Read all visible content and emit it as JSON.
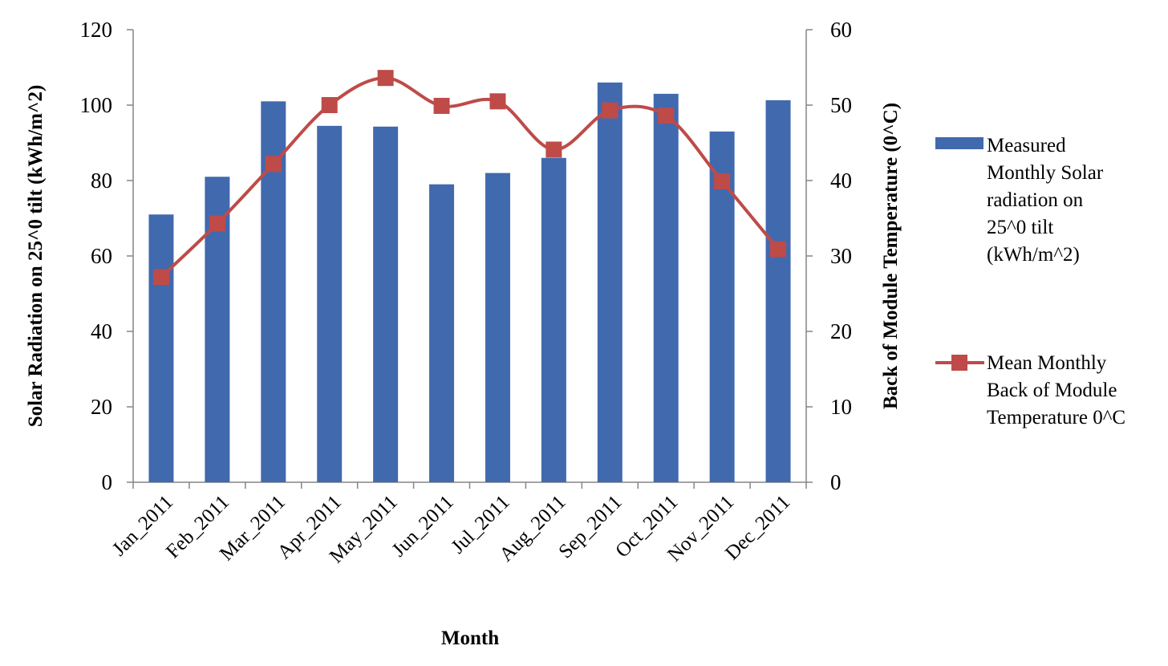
{
  "chart_data": {
    "type": "bar",
    "title": "",
    "categories": [
      "Jan_2011",
      "Feb_2011",
      "Mar_2011",
      "Apr_2011",
      "May_2011",
      "Jun_2011",
      "Jul_2011",
      "Aug_2011",
      "Sep_2011",
      "Oct_2011",
      "Nov_2011",
      "Dec_2011"
    ],
    "xlabel": "Month",
    "ylabel": "Solar Radiation on 25^0 tilt (kWh/m^2)",
    "y2label": "Back of Module Temperature (0^C)",
    "ylim": [
      0,
      120
    ],
    "yticks": [
      0,
      20,
      40,
      60,
      80,
      100,
      120
    ],
    "y2lim": [
      0,
      60
    ],
    "y2ticks": [
      0,
      10,
      20,
      30,
      40,
      50,
      60
    ],
    "grid": false,
    "legend_position": "right",
    "series": [
      {
        "name": "Measured Monthly Solar radiation on 25^0 tilt (kWh/m^2)",
        "legend_lines": [
          "Measured",
          "Monthly Solar",
          "radiation on",
          "25^0 tilt",
          "(kWh/m^2)"
        ],
        "type": "bar",
        "axis": "left",
        "color": "#4169AE",
        "values": [
          71,
          81,
          101,
          94.5,
          94.3,
          79,
          82,
          86,
          106,
          103,
          93,
          101.3
        ]
      },
      {
        "name": "Mean Monthly Back of Module Temperature 0^C",
        "legend_lines": [
          "Mean Monthly",
          "Back of Module",
          "Temperature 0^C"
        ],
        "type": "line",
        "axis": "right",
        "smooth": true,
        "marker": "square",
        "color": "#BE4B48",
        "values": [
          27.2,
          34.3,
          42.2,
          50.0,
          53.6,
          49.9,
          50.5,
          44.1,
          49.3,
          48.6,
          39.9,
          30.9
        ]
      }
    ]
  }
}
